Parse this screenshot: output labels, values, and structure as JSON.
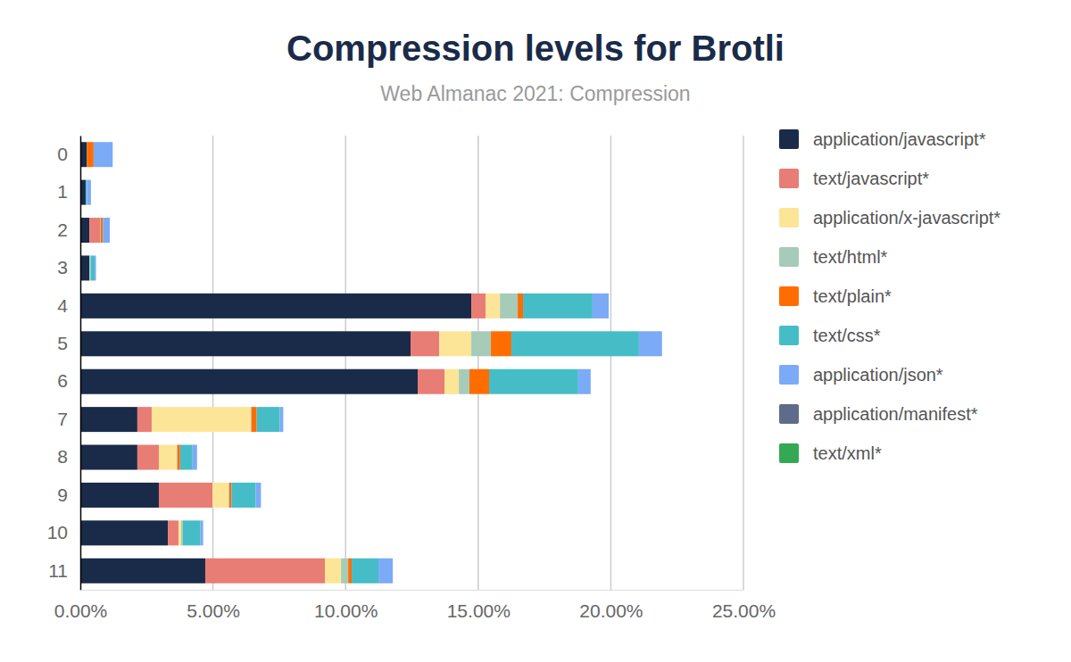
{
  "chart_data": {
    "type": "bar",
    "title": "Compression levels for Brotli",
    "subtitle": "Web Almanac 2021: Compression",
    "orientation": "horizontal",
    "stacked": true,
    "grid": true,
    "legend": "right",
    "categories": [
      "0",
      "1",
      "2",
      "3",
      "4",
      "5",
      "6",
      "7",
      "8",
      "9",
      "10",
      "11"
    ],
    "xlim": [
      0,
      25
    ],
    "xticks": [
      {
        "value": 0,
        "label": "0.00%"
      },
      {
        "value": 5,
        "label": "5.00%"
      },
      {
        "value": 10,
        "label": "10.00%"
      },
      {
        "value": 15,
        "label": "15.00%"
      },
      {
        "value": 20,
        "label": "20.00%"
      },
      {
        "value": 25,
        "label": "25.00%"
      }
    ],
    "series": [
      {
        "name": "application/javascript*",
        "color": "#1a2b49",
        "values": [
          0.25,
          0.2,
          0.34,
          0.34,
          14.74,
          12.45,
          12.72,
          2.15,
          2.15,
          2.96,
          3.3,
          4.71
        ]
      },
      {
        "name": "text/javascript*",
        "color": "#e87d75",
        "values": [
          0,
          0,
          0.4,
          0,
          0.54,
          1.08,
          1.01,
          0.54,
          0.81,
          2.02,
          0.4,
          4.51
        ]
      },
      {
        "name": "application/x-javascript*",
        "color": "#fde597",
        "values": [
          0,
          0,
          0,
          0,
          0.54,
          1.21,
          0.54,
          3.73,
          0.67,
          0.61,
          0.1,
          0.61
        ]
      },
      {
        "name": "text/html*",
        "color": "#a6cbb9",
        "values": [
          0,
          0,
          0.03,
          0.05,
          0.67,
          0.74,
          0.4,
          0.03,
          0.03,
          0.03,
          0.06,
          0.27
        ]
      },
      {
        "name": "text/plain*",
        "color": "#ff6d01",
        "values": [
          0.25,
          0,
          0.08,
          0,
          0.2,
          0.77,
          0.74,
          0.2,
          0.1,
          0.08,
          0,
          0.13
        ]
      },
      {
        "name": "text/css*",
        "color": "#46bdc6",
        "values": [
          0,
          0.05,
          0,
          0.15,
          2.62,
          4.81,
          3.36,
          0.87,
          0.47,
          0.91,
          0.67,
          1.01
        ]
      },
      {
        "name": "application/json*",
        "color": "#7baaf7",
        "values": [
          0.72,
          0.15,
          0.26,
          0.05,
          0.61,
          0.87,
          0.47,
          0.13,
          0.17,
          0.2,
          0.1,
          0.54
        ]
      },
      {
        "name": "application/manifest*",
        "color": "#5f6b8a",
        "values": [
          0,
          0,
          0,
          0,
          0,
          0,
          0,
          0,
          0,
          0,
          0,
          0
        ]
      },
      {
        "name": "text/xml*",
        "color": "#34a853",
        "values": [
          0,
          0,
          0,
          0,
          0,
          0,
          0,
          0,
          0,
          0,
          0,
          0
        ]
      }
    ]
  }
}
